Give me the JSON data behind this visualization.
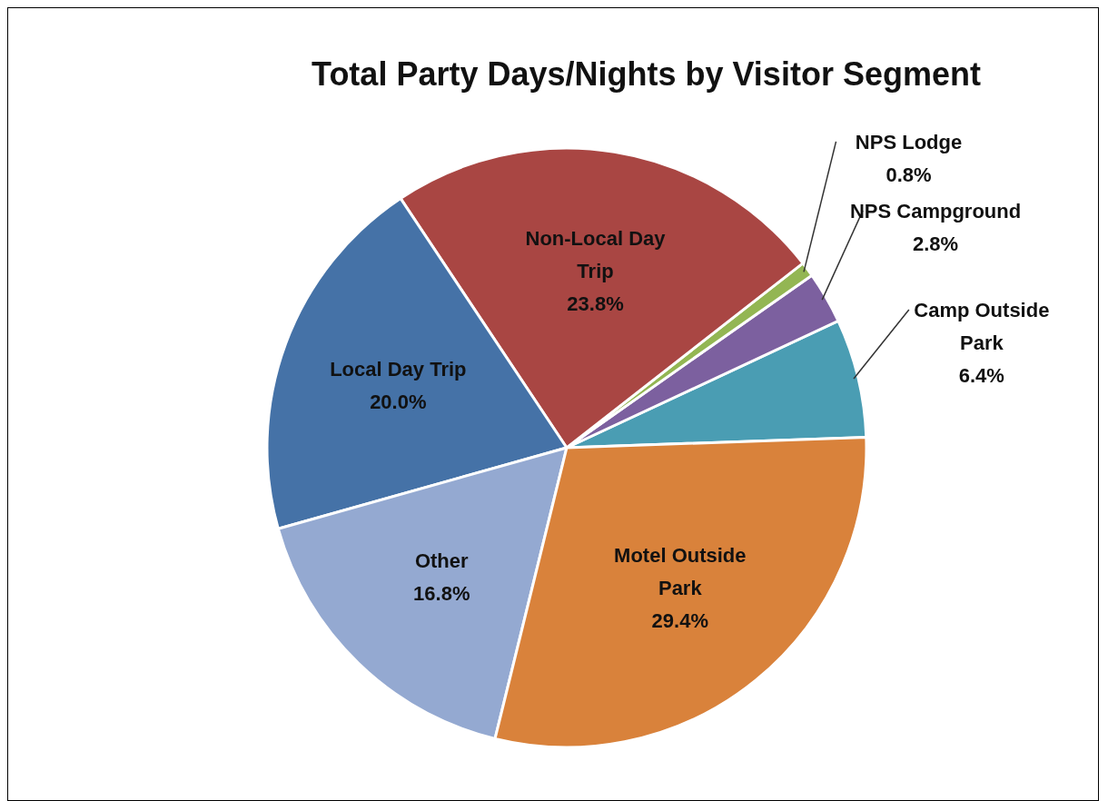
{
  "chart_data": {
    "type": "pie",
    "title": "Total Party Days/Nights by Visitor Segment",
    "categories": [
      "Camp Outside Park",
      "NPS Campground",
      "NPS Lodge",
      "Non-Local Day Trip",
      "Local Day Trip",
      "Other",
      "Motel Outside Park"
    ],
    "values": [
      6.4,
      2.8,
      0.8,
      23.8,
      20.0,
      16.8,
      29.4
    ],
    "value_labels": [
      "6.4%",
      "2.8%",
      "0.8%",
      "23.8%",
      "20.0%",
      "16.8%",
      "29.4%"
    ],
    "colors": [
      "#4a9db3",
      "#7c609f",
      "#93b653",
      "#a94643",
      "#4572a7",
      "#94a9d1",
      "#d9823b"
    ],
    "legend": false
  }
}
